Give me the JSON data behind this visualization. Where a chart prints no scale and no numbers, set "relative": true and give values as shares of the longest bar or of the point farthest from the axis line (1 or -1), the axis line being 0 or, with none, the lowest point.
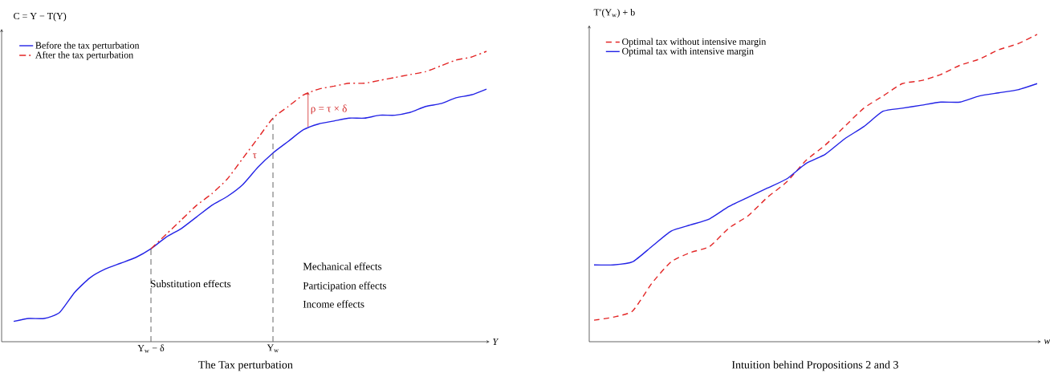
{
  "chart_data": [
    {
      "type": "line",
      "title": "The Tax perturbation",
      "xlabel": "Y",
      "ylabel": "C = Y − T(Y)",
      "relative": true,
      "legend": "top left",
      "marker": "none",
      "categories": [
        null,
        null,
        null,
        null,
        null,
        null,
        null,
        null,
        null,
        "Y$_{w}$ − δ",
        null,
        null,
        null,
        null,
        null,
        null,
        null,
        "Y$_{w}$",
        null,
        null,
        null,
        null,
        null,
        null,
        null,
        null,
        null,
        null,
        null,
        null,
        null,
        null
      ],
      "series": [
        {
          "name": "Before the tax perturbation",
          "color": "#2323e6",
          "line_style": "solid",
          "values": [
            0.07,
            0.08,
            0.08,
            0.1,
            0.17,
            0.22,
            0.25,
            0.27,
            0.29,
            0.32,
            0.36,
            0.39,
            0.43,
            0.47,
            0.5,
            0.54,
            0.6,
            0.65,
            0.69,
            0.73,
            0.75,
            0.76,
            0.77,
            0.77,
            0.78,
            0.78,
            0.79,
            0.81,
            0.82,
            0.84,
            0.85,
            0.87
          ]
        },
        {
          "name": "After the tax perturbation",
          "color": "#e32626",
          "line_style": "dashdot",
          "values": [
            null,
            null,
            null,
            null,
            null,
            null,
            null,
            null,
            null,
            0.32,
            0.37,
            0.42,
            0.47,
            0.51,
            0.56,
            0.63,
            0.7,
            0.77,
            0.81,
            0.85,
            0.87,
            0.88,
            0.89,
            0.89,
            0.9,
            0.91,
            0.92,
            0.93,
            0.95,
            0.97,
            0.98,
            1
          ]
        }
      ],
      "ref_lines": [
        {
          "axis": "x",
          "value": "Y$_{w}$ − δ",
          "line_style": "dashed",
          "color": "#555555"
        },
        {
          "axis": "x",
          "value": "Y$_{w}$",
          "line_style": "dashed",
          "color": "#555555"
        }
      ],
      "annotations": [
        "Substitution effects",
        "Mechanical effects",
        "Participation effects",
        "Income effects",
        "ρ = τ × δ",
        "τ"
      ]
    },
    {
      "type": "line",
      "title": "Intuition behind Propositions 2 and 3",
      "xlabel": "w",
      "ylabel": "T′(Y$_{w}$) + b",
      "relative": true,
      "legend": "top left",
      "marker": "none",
      "categories": [
        null,
        null,
        null,
        null,
        null,
        null,
        null,
        null,
        null,
        null,
        null,
        null,
        null,
        null,
        null,
        null,
        null,
        null,
        null,
        null,
        null,
        null,
        null,
        null
      ],
      "series": [
        {
          "name": "Optimal tax without intensive margin",
          "color": "#e32626",
          "line_style": "dashed",
          "values": [
            0.07,
            0.08,
            0.1,
            0.19,
            0.26,
            0.29,
            0.31,
            0.37,
            0.41,
            0.47,
            0.52,
            0.59,
            0.64,
            0.7,
            0.76,
            0.8,
            0.84,
            0.85,
            0.87,
            0.9,
            0.92,
            0.95,
            0.97,
            1
          ]
        },
        {
          "name": "Optimal tax with intensive margin",
          "color": "#2323e6",
          "line_style": "solid",
          "values": [
            0.25,
            0.25,
            0.26,
            0.31,
            0.36,
            0.38,
            0.4,
            0.44,
            0.47,
            0.5,
            0.53,
            0.58,
            0.61,
            0.66,
            0.7,
            0.75,
            0.76,
            0.77,
            0.78,
            0.78,
            0.8,
            0.81,
            0.82,
            0.84
          ]
        }
      ]
    }
  ]
}
